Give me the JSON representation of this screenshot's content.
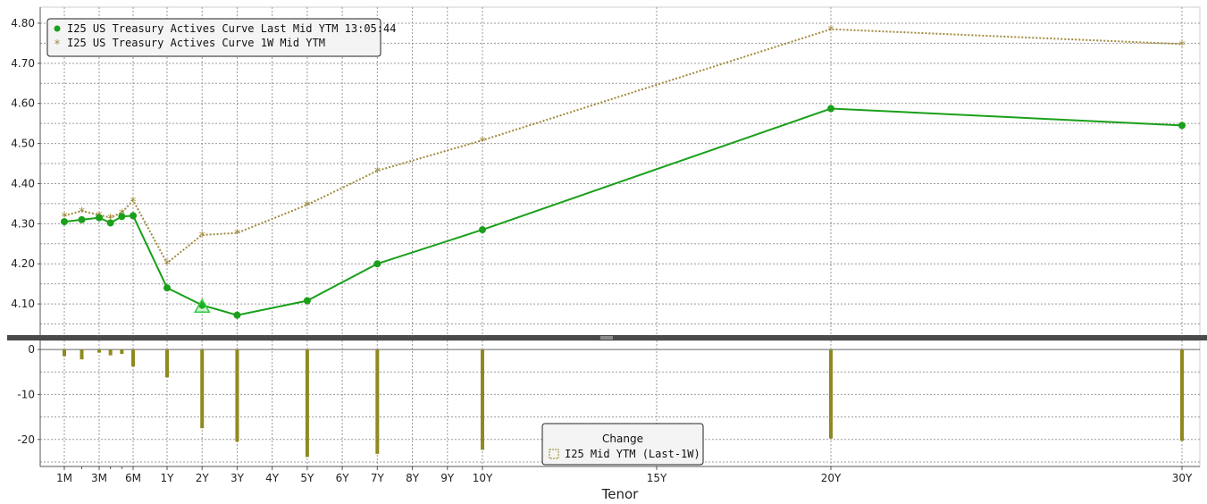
{
  "chart_data": {
    "type": "line",
    "xlabel": "Tenor",
    "x_tick_labels": [
      "1M",
      "3M",
      "6M",
      "1Y",
      "2Y",
      "3Y",
      "4Y",
      "5Y",
      "6Y",
      "7Y",
      "8Y",
      "9Y",
      "10Y",
      "15Y",
      "20Y",
      "30Y"
    ],
    "top_panel": {
      "ylim": [
        4.02,
        4.84
      ],
      "y_ticks": [
        "4.10",
        "4.20",
        "4.30",
        "4.40",
        "4.50",
        "4.60",
        "4.70",
        "4.80"
      ],
      "grid": true,
      "legend_position": "top-left",
      "series": [
        {
          "name": "I25 US Treasury Actives Curve Last Mid YTM 13:05:44",
          "color": "#1aa01a",
          "marker": "circle",
          "points": [
            {
              "tenor": "1M",
              "y": 4.305
            },
            {
              "tenor": "2M",
              "y": 4.31
            },
            {
              "tenor": "3M",
              "y": 4.315
            },
            {
              "tenor": "4M",
              "y": 4.302
            },
            {
              "tenor": "5M",
              "y": 4.318
            },
            {
              "tenor": "6M",
              "y": 4.32
            },
            {
              "tenor": "1Y",
              "y": 4.14
            },
            {
              "tenor": "2Y",
              "y": 4.097
            },
            {
              "tenor": "3Y",
              "y": 4.072
            },
            {
              "tenor": "5Y",
              "y": 4.108
            },
            {
              "tenor": "7Y",
              "y": 4.2
            },
            {
              "tenor": "10Y",
              "y": 4.285
            },
            {
              "tenor": "20Y",
              "y": 4.587
            },
            {
              "tenor": "30Y",
              "y": 4.545
            }
          ]
        },
        {
          "name": "I25 US Treasury Actives Curve 1W Mid YTM",
          "color": "#a08a3c",
          "marker": "star",
          "points": [
            {
              "tenor": "1M",
              "y": 4.32
            },
            {
              "tenor": "2M",
              "y": 4.332
            },
            {
              "tenor": "3M",
              "y": 4.322
            },
            {
              "tenor": "4M",
              "y": 4.315
            },
            {
              "tenor": "5M",
              "y": 4.328
            },
            {
              "tenor": "6M",
              "y": 4.358
            },
            {
              "tenor": "1Y",
              "y": 4.202
            },
            {
              "tenor": "2Y",
              "y": 4.272
            },
            {
              "tenor": "3Y",
              "y": 4.277
            },
            {
              "tenor": "5Y",
              "y": 4.347
            },
            {
              "tenor": "7Y",
              "y": 4.432
            },
            {
              "tenor": "10Y",
              "y": 4.508
            },
            {
              "tenor": "20Y",
              "y": 4.785
            },
            {
              "tenor": "30Y",
              "y": 4.748
            }
          ]
        }
      ],
      "marker_annotation": {
        "shape": "triangle",
        "tenor": "2Y",
        "y": 4.093,
        "color": "#2ecc40"
      }
    },
    "bottom_panel": {
      "type": "bar",
      "ylim": [
        -26,
        2
      ],
      "y_ticks": [
        "0",
        "-10",
        "-20"
      ],
      "legend_title": "Change",
      "legend_position": "bottom-center",
      "series": [
        {
          "name": "I25 Mid YTM (Last-1W)",
          "color": "#8f8a1f",
          "points": [
            {
              "tenor": "1M",
              "y": -1.5
            },
            {
              "tenor": "2M",
              "y": -2.2
            },
            {
              "tenor": "3M",
              "y": -0.7
            },
            {
              "tenor": "4M",
              "y": -1.3
            },
            {
              "tenor": "5M",
              "y": -1.0
            },
            {
              "tenor": "6M",
              "y": -3.8
            },
            {
              "tenor": "1Y",
              "y": -6.2
            },
            {
              "tenor": "2Y",
              "y": -17.5
            },
            {
              "tenor": "3Y",
              "y": -20.5
            },
            {
              "tenor": "5Y",
              "y": -23.9
            },
            {
              "tenor": "7Y",
              "y": -23.2
            },
            {
              "tenor": "10Y",
              "y": -22.3
            },
            {
              "tenor": "20Y",
              "y": -19.8
            },
            {
              "tenor": "30Y",
              "y": -20.3
            }
          ]
        }
      ]
    }
  }
}
